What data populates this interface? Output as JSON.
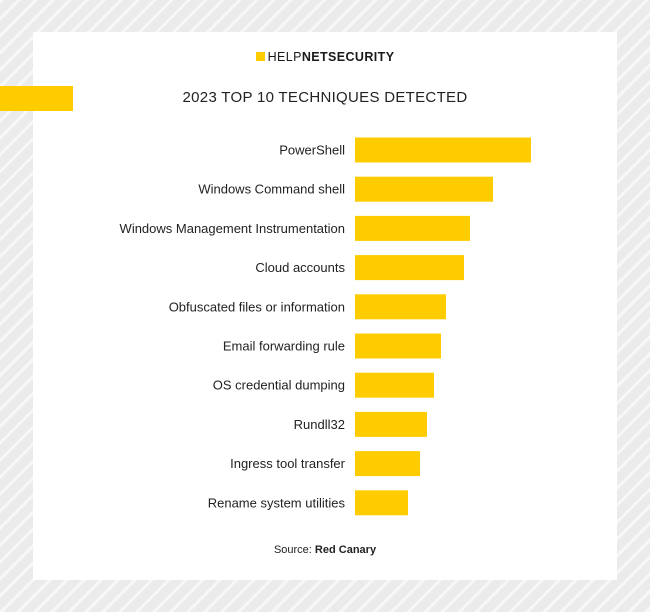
{
  "logo": {
    "part1": "HELP",
    "part2": "NET",
    "part3": "SECURITY"
  },
  "colors": {
    "bar": "#ffcc00",
    "accent": "#ffcc00",
    "text": "#222222",
    "background": "#ebebeb"
  },
  "source": {
    "prefix": "Source:",
    "name": "Red Canary"
  },
  "chart_data": {
    "type": "bar",
    "orientation": "horizontal",
    "title": "2023 TOP 10 TECHNIQUES DETECTED",
    "categories": [
      "PowerShell",
      "Windows Command shell",
      "Windows Management Instrumentation",
      "Cloud accounts",
      "Obfuscated files or information",
      "Email forwarding rule",
      "OS credential dumping",
      "Rundll32",
      "Ingress tool transfer",
      "Rename system utilities"
    ],
    "values": [
      176,
      138,
      115,
      109,
      91,
      86,
      79,
      72,
      65,
      53
    ],
    "grid": false,
    "legend": "none"
  }
}
